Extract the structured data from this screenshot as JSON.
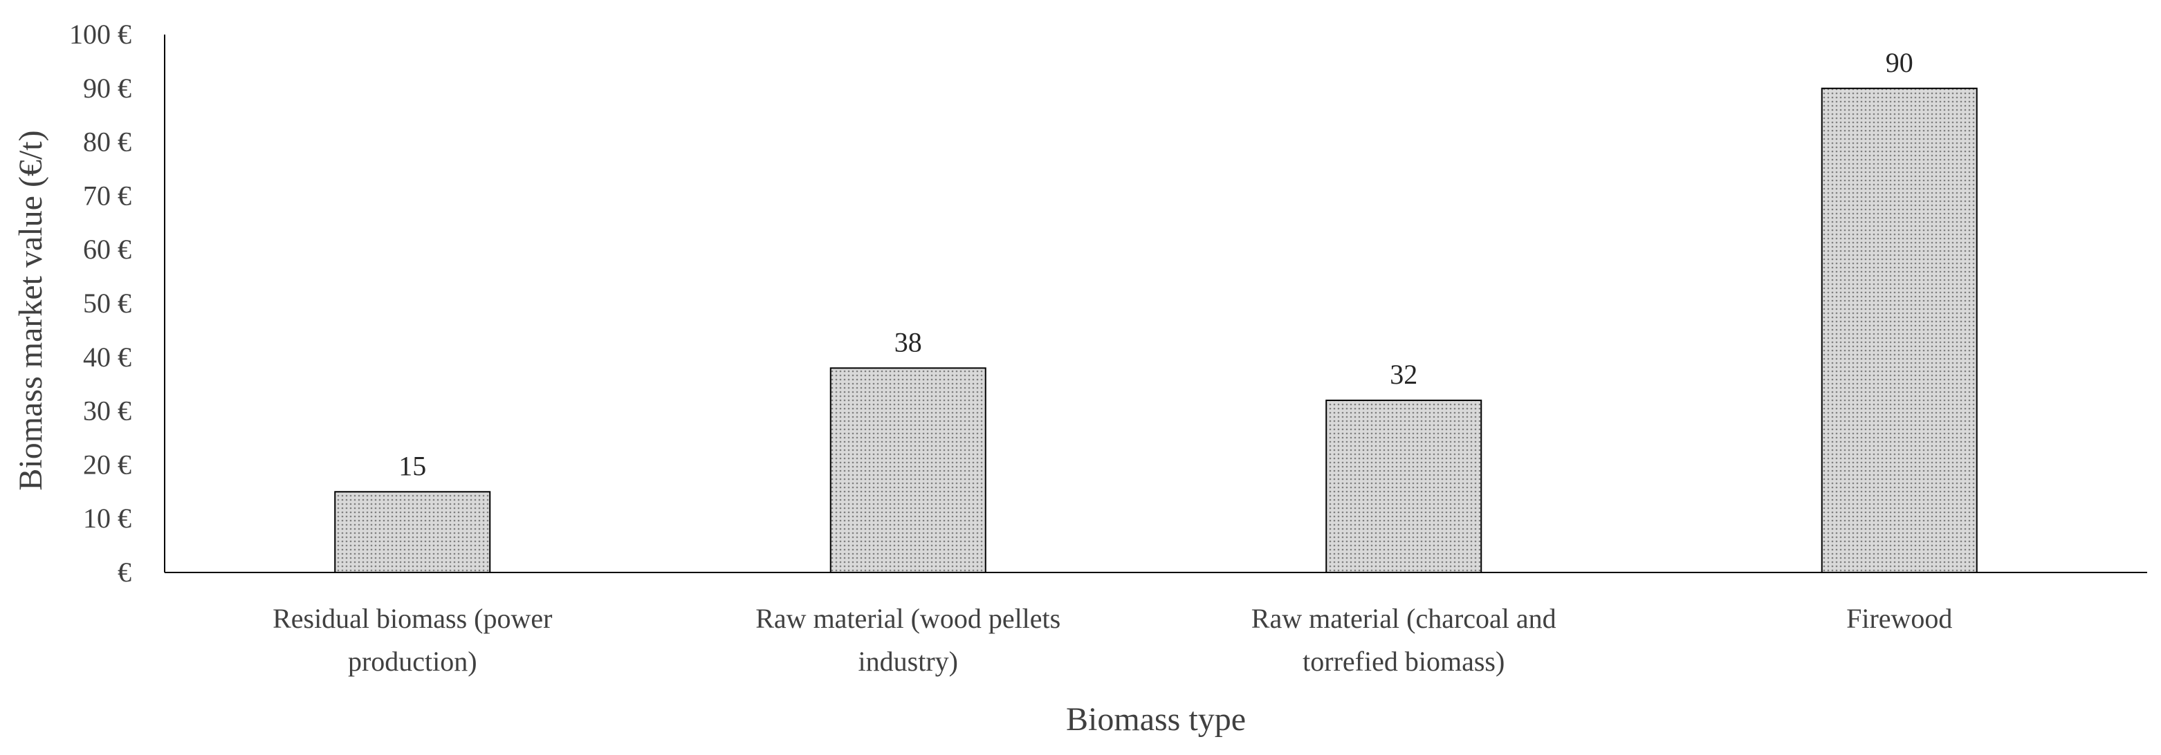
{
  "chart_data": {
    "type": "bar",
    "categories": [
      [
        "Residual biomass (power",
        "production)"
      ],
      [
        "Raw material (wood pellets",
        "industry)"
      ],
      [
        "Raw material (charcoal and",
        "torrefied biomass)"
      ],
      [
        "Firewood"
      ]
    ],
    "values": [
      15,
      38,
      32,
      90
    ],
    "data_labels": [
      "15",
      "38",
      "32",
      "90"
    ],
    "xlabel": "Biomass type",
    "ylabel": "Biomass market value (€/t)",
    "ylim": [
      0,
      100
    ],
    "y_ticks": [
      0,
      10,
      20,
      30,
      40,
      50,
      60,
      70,
      80,
      90,
      100
    ],
    "y_tick_labels": [
      "€",
      "10 €",
      "20 €",
      "30 €",
      "40 €",
      "50 €",
      "60 €",
      "70 €",
      "80 €",
      "90 €",
      "100 €"
    ],
    "grid": false,
    "legend": "none",
    "colors": {
      "bar_fill": "#d9d9d9",
      "bar_dots": "#7f7f7f",
      "bar_stroke": "#000000",
      "axis": "#000000"
    }
  }
}
